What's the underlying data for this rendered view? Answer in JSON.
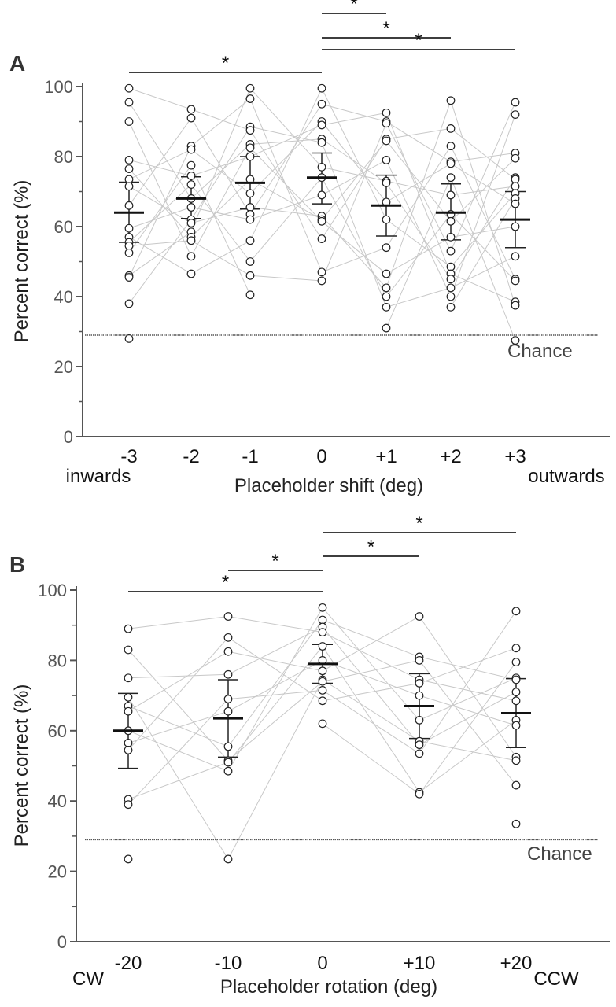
{
  "chart_data": [
    {
      "type": "scatter",
      "panel_label": "A",
      "ylabel": "Percent correct (%)",
      "xlabel": "Placeholder shift (deg)",
      "x_end_labels": {
        "left": "inwards",
        "right": "outwards"
      },
      "categories": [
        "-3",
        "-2",
        "-1",
        "0",
        "+1",
        "+2",
        "+3"
      ],
      "ylim": [
        0,
        100
      ],
      "yticks": [
        0,
        20,
        40,
        60,
        80,
        100
      ],
      "chance": {
        "value": 29,
        "label": "Chance"
      },
      "mean": [
        64,
        68,
        72.5,
        74,
        66,
        64,
        62
      ],
      "error": [
        [
          55.5,
          72.7
        ],
        [
          62.3,
          74.2
        ],
        [
          65,
          80
        ],
        [
          66.5,
          81
        ],
        [
          57.3,
          74.7
        ],
        [
          56.2,
          72.2
        ],
        [
          54,
          70
        ]
      ],
      "points": [
        [
          99.5,
          95.5,
          90,
          79,
          76.5,
          73.5,
          71.5,
          66,
          59.5,
          57,
          55.5,
          54.5,
          52.5,
          46,
          45.5,
          38,
          28
        ],
        [
          93.5,
          91,
          83,
          82,
          77.5,
          74.5,
          72,
          68,
          65.5,
          62,
          61,
          58.5,
          57,
          56,
          51.5,
          46.5
        ],
        [
          99.5,
          96.5,
          88.5,
          87.5,
          83.5,
          82.5,
          80,
          73.5,
          69.5,
          65.5,
          63.5,
          62,
          56,
          50,
          46,
          40.5
        ],
        [
          99.5,
          95,
          90,
          89,
          85,
          84,
          77,
          74,
          69,
          63,
          62,
          61.5,
          56.5,
          47,
          44.5
        ],
        [
          92.5,
          90,
          89.5,
          85,
          84.5,
          79,
          73,
          72.5,
          67,
          62,
          54,
          46.5,
          42.5,
          40,
          37,
          31
        ],
        [
          96,
          88,
          83,
          78.5,
          78,
          74,
          69,
          63.5,
          61.5,
          57,
          53,
          48.5,
          46.5,
          45,
          42.5,
          40,
          37
        ],
        [
          95.5,
          92,
          81,
          79.5,
          74,
          73.5,
          71.5,
          69.5,
          68,
          66.5,
          60,
          51.5,
          45,
          44.5,
          38.5,
          37.5,
          27.5
        ]
      ],
      "significance": [
        {
          "from": "-3",
          "to": "0",
          "label": "*"
        },
        {
          "from": "0",
          "to": "+1",
          "label": "*"
        },
        {
          "from": "0",
          "to": "+2",
          "label": "*"
        },
        {
          "from": "0",
          "to": "+3",
          "label": "*"
        }
      ]
    },
    {
      "type": "scatter",
      "panel_label": "B",
      "ylabel": "Percent correct (%)",
      "xlabel": "Placeholder rotation (deg)",
      "x_end_labels": {
        "left": "CW",
        "right": "CCW"
      },
      "categories": [
        "-20",
        "-10",
        "0",
        "+10",
        "+20"
      ],
      "ylim": [
        0,
        100
      ],
      "yticks": [
        0,
        20,
        40,
        60,
        80,
        100
      ],
      "chance": {
        "value": 29,
        "label": "Chance"
      },
      "mean": [
        60,
        63.5,
        79,
        67,
        65
      ],
      "error": [
        [
          49.3,
          70.6
        ],
        [
          52.5,
          74.5
        ],
        [
          73.5,
          84.5
        ],
        [
          57.8,
          76.2
        ],
        [
          55.2,
          74.8
        ]
      ],
      "points": [
        [
          89,
          83,
          75,
          69.5,
          67,
          65.5,
          60,
          56.5,
          54.5,
          40.5,
          39,
          23.5
        ],
        [
          92.5,
          86.5,
          82.5,
          76,
          69,
          65.5,
          55.5,
          51.5,
          51,
          48.5,
          23.5
        ],
        [
          95,
          91.5,
          89.5,
          88,
          84,
          80,
          77,
          74.5,
          74,
          71.5,
          68.5,
          62
        ],
        [
          92.5,
          81,
          80,
          74.5,
          73.5,
          70,
          63,
          57,
          56,
          53.5,
          42.5,
          42
        ],
        [
          94,
          83.5,
          79.5,
          75,
          74.5,
          71,
          68.5,
          63,
          61.5,
          52.5,
          51.5,
          44.5,
          33.5
        ]
      ],
      "significance": [
        {
          "from": "-20",
          "to": "0",
          "label": "*"
        },
        {
          "from": "-10",
          "to": "0",
          "label": "*"
        },
        {
          "from": "0",
          "to": "+10",
          "label": "*"
        },
        {
          "from": "0",
          "to": "+20",
          "label": "*"
        }
      ]
    }
  ]
}
